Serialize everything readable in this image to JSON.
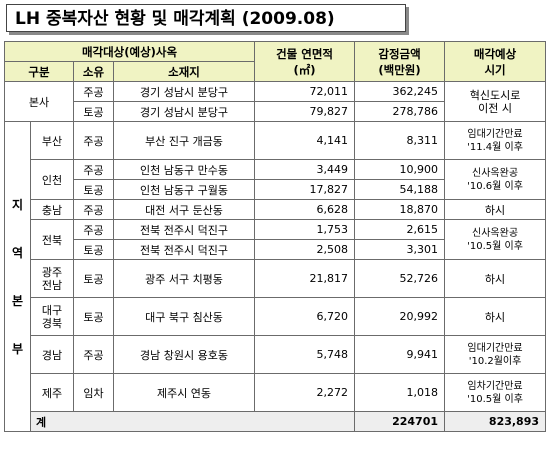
{
  "title": "LH 중복자산 현황 및 매각계획 (2009.08)",
  "header": {
    "group": "매각대상(예상)사옥",
    "area": "건물 연면적",
    "area_unit": "(㎡)",
    "appraisal": "감정금액",
    "appraisal_unit": "(백만원)",
    "plan": "매각예상",
    "plan2": "시기",
    "col_category": "구분",
    "col_owner": "소유",
    "col_location": "소재지"
  },
  "head_office": {
    "label": "본사",
    "plan_line1": "혁신도시로",
    "plan_line2": "이전 시",
    "rows": [
      {
        "owner": "주공",
        "location": "경기 성남시 분당구",
        "area": "72,011",
        "appraisal": "362,245"
      },
      {
        "owner": "토공",
        "location": "경기 성남시 분당구",
        "area": "79,827",
        "appraisal": "278,786"
      }
    ]
  },
  "regional": {
    "label": "지 역 본 부",
    "label_chars": [
      "지",
      "역",
      "본",
      "부"
    ],
    "busan": {
      "region": "부산",
      "owner": "주공",
      "location": "부산 진구 개금동",
      "area": "4,141",
      "appraisal": "8,311",
      "plan_line1": "임대기간만료",
      "plan_line2": "'11.4월 이후"
    },
    "incheon": {
      "region": "인천",
      "plan_line1": "신사옥완공",
      "plan_line2": "'10.6월 이후",
      "rows": [
        {
          "owner": "주공",
          "location": "인천 남동구 만수동",
          "area": "3,449",
          "appraisal": "10,900"
        },
        {
          "owner": "토공",
          "location": "인천 남동구 구월동",
          "area": "17,827",
          "appraisal": "54,188"
        }
      ]
    },
    "chungnam": {
      "region": "충남",
      "owner": "주공",
      "location": "대전 서구 둔산동",
      "area": "6,628",
      "appraisal": "18,870",
      "plan": "하시"
    },
    "jeonbuk": {
      "region": "전북",
      "plan_line1": "신사옥완공",
      "plan_line2": "'10.5월 이후",
      "rows": [
        {
          "owner": "주공",
          "location": "전북 전주시 덕진구",
          "area": "1,753",
          "appraisal": "2,615"
        },
        {
          "owner": "토공",
          "location": "전북 전주시 덕진구",
          "area": "2,508",
          "appraisal": "3,301"
        }
      ]
    },
    "gwangju": {
      "region_line1": "광주",
      "region_line2": "전남",
      "owner": "토공",
      "location": "광주 서구 치평동",
      "area": "21,817",
      "appraisal": "52,726",
      "plan": "하시"
    },
    "daegu": {
      "region_line1": "대구",
      "region_line2": "경북",
      "owner": "토공",
      "location": "대구 북구 침산동",
      "area": "6,720",
      "appraisal": "20,992",
      "plan": "하시"
    },
    "gyeongnam": {
      "region": "경남",
      "owner": "주공",
      "location": "경남 창원시 용호동",
      "area": "5,748",
      "appraisal": "9,941",
      "plan_line1": "임대기간만료",
      "plan_line2": "'10.2월이후"
    },
    "jeju": {
      "region": "제주",
      "owner": "임차",
      "location": "제주시 연동",
      "area": "2,272",
      "appraisal": "1,018",
      "plan_line1": "임차기간만료",
      "plan_line2": "'10.5월 이후"
    }
  },
  "total": {
    "label": "계",
    "area": "224701",
    "appraisal": "823,893"
  }
}
